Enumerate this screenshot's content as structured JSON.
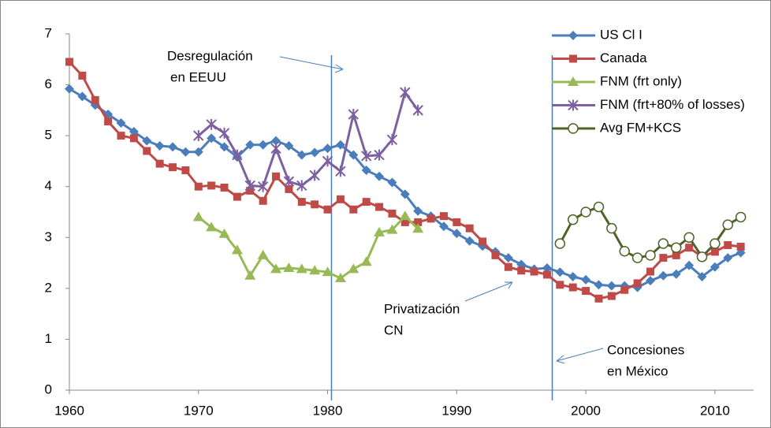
{
  "chart_data": {
    "type": "line",
    "xlim": [
      1960,
      2013
    ],
    "xticks": [
      1960,
      1970,
      1980,
      1990,
      2000,
      2010
    ],
    "ylim": [
      0,
      7
    ],
    "yticks": [
      0,
      1,
      2,
      3,
      4,
      5,
      6,
      7
    ],
    "grid": false,
    "legend": "top-right",
    "vlines": [
      1980.3,
      1997.4
    ],
    "annotations": [
      {
        "lines": [
          "Desregulación",
          "en EEUU"
        ]
      },
      {
        "lines": [
          "Privatización",
          "CN"
        ]
      },
      {
        "lines": [
          "Concesiones",
          "en México"
        ]
      }
    ],
    "series": [
      {
        "name": "US Cl I",
        "color": "#4a7ebb",
        "marker": "diamond",
        "x": [
          1960,
          1961,
          1962,
          1963,
          1964,
          1965,
          1966,
          1967,
          1968,
          1969,
          1970,
          1971,
          1972,
          1973,
          1974,
          1975,
          1976,
          1977,
          1978,
          1979,
          1980,
          1981,
          1982,
          1983,
          1984,
          1985,
          1986,
          1987,
          1988,
          1989,
          1990,
          1991,
          1992,
          1993,
          1994,
          1995,
          1996,
          1997,
          1998,
          1999,
          2000,
          2001,
          2002,
          2003,
          2004,
          2005,
          2006,
          2007,
          2008,
          2009,
          2010,
          2011,
          2012
        ],
        "values": [
          5.92,
          5.77,
          5.6,
          5.42,
          5.25,
          5.08,
          4.9,
          4.8,
          4.78,
          4.68,
          4.68,
          4.95,
          4.78,
          4.58,
          4.82,
          4.82,
          4.9,
          4.8,
          4.62,
          4.67,
          4.75,
          4.82,
          4.62,
          4.32,
          4.2,
          4.08,
          3.85,
          3.52,
          3.42,
          3.22,
          3.08,
          2.93,
          2.83,
          2.72,
          2.6,
          2.47,
          2.38,
          2.4,
          2.32,
          2.23,
          2.17,
          2.07,
          2.05,
          2.05,
          2.02,
          2.15,
          2.25,
          2.28,
          2.45,
          2.23,
          2.42,
          2.6,
          2.7
        ]
      },
      {
        "name": "Canada",
        "color": "#be4b48",
        "marker": "square",
        "x": [
          1960,
          1961,
          1962,
          1963,
          1964,
          1965,
          1966,
          1967,
          1968,
          1969,
          1970,
          1971,
          1972,
          1973,
          1974,
          1975,
          1976,
          1977,
          1978,
          1979,
          1980,
          1981,
          1982,
          1983,
          1984,
          1985,
          1986,
          1987,
          1988,
          1989,
          1990,
          1991,
          1992,
          1993,
          1994,
          1995,
          1996,
          1997,
          1998,
          1999,
          2000,
          2001,
          2002,
          2003,
          2004,
          2005,
          2006,
          2007,
          2008,
          2009,
          2010,
          2011,
          2012
        ],
        "values": [
          6.45,
          6.18,
          5.7,
          5.28,
          5.0,
          4.95,
          4.7,
          4.45,
          4.38,
          4.32,
          4.0,
          4.02,
          3.98,
          3.8,
          3.92,
          3.72,
          4.2,
          3.95,
          3.7,
          3.65,
          3.55,
          3.75,
          3.55,
          3.7,
          3.6,
          3.47,
          3.3,
          3.3,
          3.37,
          3.42,
          3.3,
          3.18,
          2.92,
          2.65,
          2.42,
          2.35,
          2.33,
          2.27,
          2.07,
          2.02,
          1.95,
          1.8,
          1.85,
          1.97,
          2.1,
          2.33,
          2.6,
          2.65,
          2.8,
          2.62,
          2.72,
          2.85,
          2.82
        ]
      },
      {
        "name": "FNM (frt only)",
        "color": "#98b954",
        "marker": "triangle",
        "x": [
          1970,
          1971,
          1972,
          1973,
          1974,
          1975,
          1976,
          1977,
          1978,
          1979,
          1980,
          1981,
          1982,
          1983,
          1984,
          1985,
          1986,
          1987
        ],
        "values": [
          3.4,
          3.2,
          3.07,
          2.75,
          2.25,
          2.65,
          2.38,
          2.4,
          2.38,
          2.35,
          2.32,
          2.2,
          2.38,
          2.52,
          3.1,
          3.15,
          3.42,
          3.17
        ]
      },
      {
        "name": "FNM (frt+80% of losses)",
        "color": "#7d60a0",
        "marker": "x",
        "x": [
          1970,
          1971,
          1972,
          1973,
          1974,
          1975,
          1976,
          1977,
          1978,
          1979,
          1980,
          1981,
          1982,
          1983,
          1984,
          1985,
          1986,
          1987
        ],
        "values": [
          5.0,
          5.22,
          5.05,
          4.62,
          4.02,
          4.0,
          4.75,
          4.1,
          4.02,
          4.22,
          4.5,
          4.3,
          5.42,
          4.6,
          4.62,
          4.92,
          5.85,
          5.5
        ]
      },
      {
        "name": "Avg FM+KCS",
        "color": "#4f6228",
        "marker": "circle",
        "x": [
          1998,
          1999,
          2000,
          2001,
          2002,
          2003,
          2004,
          2005,
          2006,
          2007,
          2008,
          2009,
          2010,
          2011,
          2012
        ],
        "values": [
          2.88,
          3.35,
          3.5,
          3.6,
          3.18,
          2.73,
          2.6,
          2.65,
          2.88,
          2.8,
          3.0,
          2.62,
          2.88,
          3.25,
          3.4
        ]
      }
    ]
  }
}
